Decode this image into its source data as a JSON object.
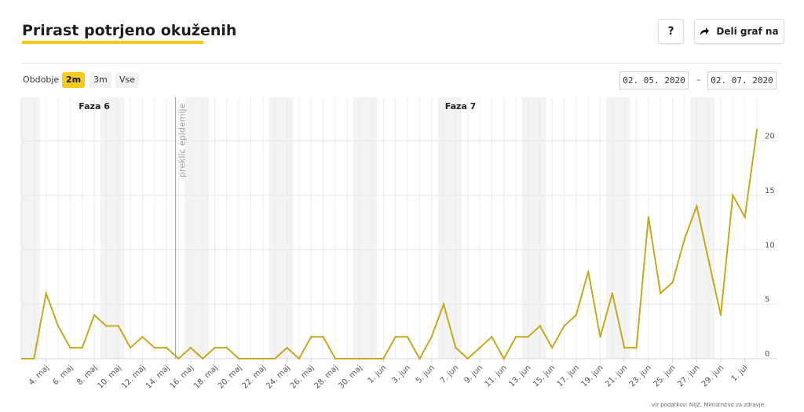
{
  "title": "Prirast potrjeno okuženih",
  "toolbar": {
    "help_label": "?",
    "share_label": "Deli graf na",
    "share_icon": "share-arrow-icon"
  },
  "period": {
    "label": "Obdobje",
    "options": [
      "2m",
      "3m",
      "Vse"
    ],
    "selected": "2m",
    "date_from": "02. 05. 2020",
    "date_separator": "–",
    "date_to": "02. 07. 2020"
  },
  "source": "vir podatkov: NIJZ, Ministrstvo za zdravje",
  "colors": {
    "accent": "#f5cc1d",
    "line": "#c4a91e"
  },
  "chart_data": {
    "type": "line",
    "title": "",
    "xlabel": "",
    "ylabel": "",
    "ylim": [
      0,
      24
    ],
    "yticks": [
      0,
      5,
      10,
      15,
      20
    ],
    "x_start": "2020-05-02",
    "x_labels": [
      "4. maj",
      "6. maj",
      "8. maj",
      "10. maj",
      "12. maj",
      "14. maj",
      "16. maj",
      "18. maj",
      "20. maj",
      "22. maj",
      "24. maj",
      "26. maj",
      "28. maj",
      "30. maj",
      "1. jun",
      "3. jun",
      "5. jun",
      "7. jun",
      "9. jun",
      "11. jun",
      "13. jun",
      "15. jun",
      "17. jun",
      "19. jun",
      "21. jun",
      "23. jun",
      "25. jun",
      "27. jun",
      "29. jun",
      "1. jul"
    ],
    "series": [
      {
        "values": [
          0,
          0,
          6,
          3,
          1,
          1,
          4,
          3,
          3,
          1,
          2,
          1,
          1,
          0,
          1,
          0,
          1,
          1,
          0,
          0,
          0,
          0,
          1,
          0,
          2,
          2,
          0,
          0,
          0,
          0,
          0,
          2,
          2,
          0,
          2,
          5,
          1,
          0,
          1,
          2,
          0,
          2,
          2,
          3,
          1,
          3,
          4,
          8,
          2,
          6,
          1,
          1,
          13,
          6,
          7,
          11,
          14,
          9,
          4,
          15,
          13,
          21
        ]
      }
    ],
    "annotations": {
      "phases": [
        {
          "label": "Faza 6"
        },
        {
          "label": "Faza 7"
        }
      ],
      "event_line_label": "preklic epidemije"
    },
    "grid": true
  }
}
